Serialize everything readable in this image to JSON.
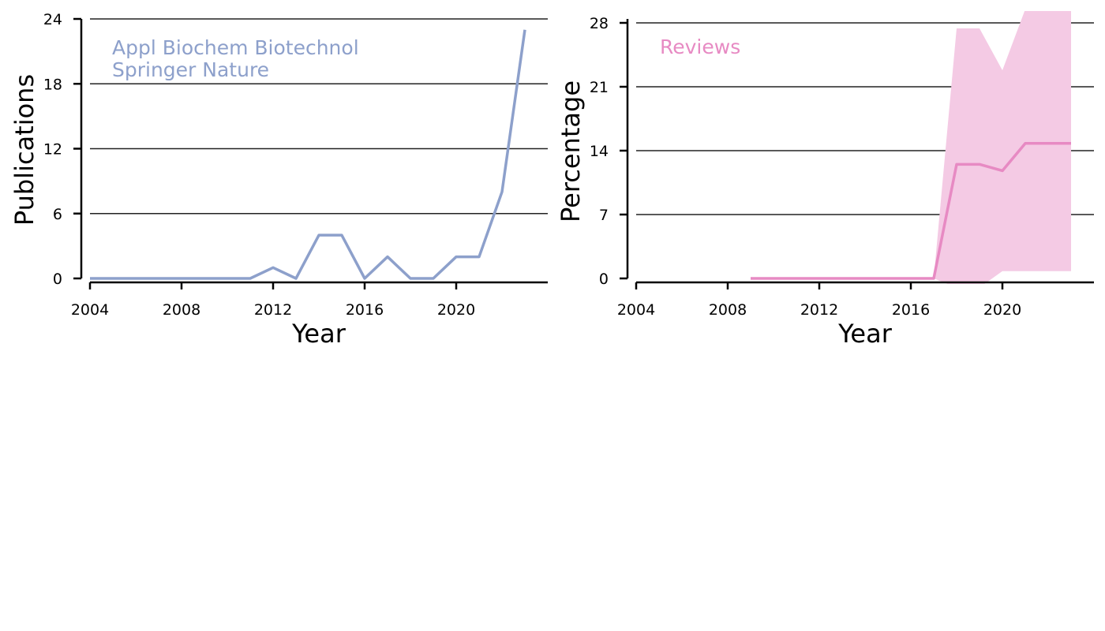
{
  "chart_data": [
    {
      "type": "line",
      "xlabel": "Year",
      "ylabel": "Publications",
      "xlim": [
        2004,
        2024
      ],
      "ylim": [
        0,
        24
      ],
      "x_ticks": [
        "2004",
        "2008",
        "2012",
        "2016",
        "2020"
      ],
      "y_ticks": [
        "0",
        "6",
        "12",
        "18",
        "24"
      ],
      "grid": "horizontal",
      "annotations": [
        "Appl Biochem Biotechnol",
        "Springer Nature"
      ],
      "colors": {
        "line": "#8da0cb",
        "annotation": "#8da0cb"
      },
      "series": [
        {
          "x": [
            2004,
            2005,
            2006,
            2007,
            2008,
            2009,
            2010,
            2011,
            2012,
            2013,
            2014,
            2015,
            2016,
            2017,
            2018,
            2019,
            2020,
            2021,
            2022,
            2023
          ],
          "values": [
            0,
            0,
            0,
            0,
            0,
            0,
            0,
            0,
            1,
            0,
            4,
            4,
            0,
            2,
            0,
            0,
            2,
            2,
            8,
            23
          ]
        }
      ]
    },
    {
      "type": "line",
      "xlabel": "Year",
      "ylabel": "Percentage",
      "xlim": [
        2004,
        2024
      ],
      "ylim": [
        0,
        28
      ],
      "x_ticks": [
        "2004",
        "2008",
        "2012",
        "2016",
        "2020"
      ],
      "y_ticks": [
        "0",
        "7",
        "14",
        "21",
        "28"
      ],
      "grid": "horizontal",
      "annotations": [
        "Reviews"
      ],
      "colors": {
        "line": "#e78ac3",
        "band": "#f4cae4",
        "annotation": "#e78ac3"
      },
      "series": [
        {
          "x": [
            2009,
            2010,
            2011,
            2012,
            2013,
            2014,
            2015,
            2016,
            2017,
            2018,
            2019,
            2020,
            2021,
            2022,
            2023
          ],
          "values": [
            0,
            0,
            0,
            0,
            0,
            0,
            0,
            0,
            0,
            12.5,
            12.5,
            11.8,
            14.8,
            14.8,
            14.8
          ],
          "band_lower": [
            0,
            0,
            0,
            0,
            0,
            0,
            0,
            0,
            0,
            -1,
            -1,
            0.8,
            0.8,
            0.8,
            0.8
          ],
          "band_upper": [
            0,
            0,
            0,
            0,
            0,
            0,
            0,
            0,
            0,
            27.4,
            27.4,
            22.8,
            29.5,
            29.5,
            29.5
          ]
        }
      ]
    }
  ]
}
